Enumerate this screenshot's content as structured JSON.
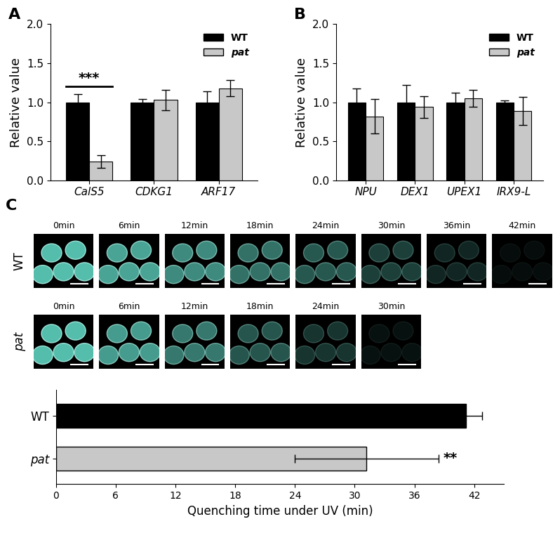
{
  "chart_data": [
    {
      "type": "bar",
      "panel": "A",
      "ylabel": "Relative value",
      "categories": [
        "CalS5",
        "CDKG1",
        "ARF17"
      ],
      "series": [
        {
          "name": "WT",
          "color": "#000000",
          "values": [
            1.0,
            1.0,
            1.0
          ],
          "errors": [
            0.1,
            0.04,
            0.14
          ]
        },
        {
          "name": "pat",
          "color": "#c8c8c8",
          "values": [
            0.24,
            1.03,
            1.18
          ],
          "errors": [
            0.08,
            0.13,
            0.1
          ]
        }
      ],
      "ylim": [
        0,
        2
      ],
      "yticks": [
        {
          "value": 0,
          "label": "0.0"
        },
        0.5,
        {
          "value": 1,
          "label": "1.0"
        },
        1.5,
        {
          "value": 2,
          "label": "2.0"
        }
      ],
      "legend": "upper right",
      "annotations": [
        {
          "text": "***",
          "category": "CalS5"
        }
      ]
    },
    {
      "type": "bar",
      "panel": "B",
      "ylabel": "Relative value",
      "categories": [
        "NPU",
        "DEX1",
        "UPEX1",
        "IRX9-L"
      ],
      "series": [
        {
          "name": "WT",
          "color": "#000000",
          "values": [
            1.0,
            1.0,
            1.0,
            1.0
          ],
          "errors": [
            0.18,
            0.22,
            0.12,
            0.02
          ]
        },
        {
          "name": "pat",
          "color": "#c8c8c8",
          "values": [
            0.82,
            0.94,
            1.05,
            0.89
          ],
          "errors": [
            0.22,
            0.14,
            0.11,
            0.18
          ]
        }
      ],
      "ylim": [
        0,
        2
      ],
      "yticks": [
        {
          "value": 0,
          "label": "0.0"
        },
        0.5,
        {
          "value": 1,
          "label": "1.0"
        },
        1.5,
        {
          "value": 2,
          "label": "2.0"
        }
      ],
      "legend": "upper right"
    },
    {
      "type": "bar",
      "panel": "C",
      "orientation": "horizontal",
      "image_rows": [
        {
          "name": "WT",
          "times": [
            "0min",
            "6min",
            "12min",
            "18min",
            "24min",
            "30min",
            "36min",
            "42min"
          ]
        },
        {
          "name": "pat",
          "times": [
            "0min",
            "6min",
            "12min",
            "18min",
            "24min",
            "30min"
          ]
        }
      ],
      "xlabel": "Quenching time under UV (min)",
      "categories": [
        "WT",
        "pat"
      ],
      "values": [
        41.2,
        31.2
      ],
      "errors": [
        1.6,
        7.2
      ],
      "colors": [
        "#000000",
        "#c8c8c8"
      ],
      "xlim": [
        0,
        45
      ],
      "xticks": [
        0,
        6,
        12,
        18,
        24,
        30,
        36,
        42
      ],
      "annotations": [
        {
          "text": "**",
          "category": "pat"
        }
      ]
    }
  ]
}
